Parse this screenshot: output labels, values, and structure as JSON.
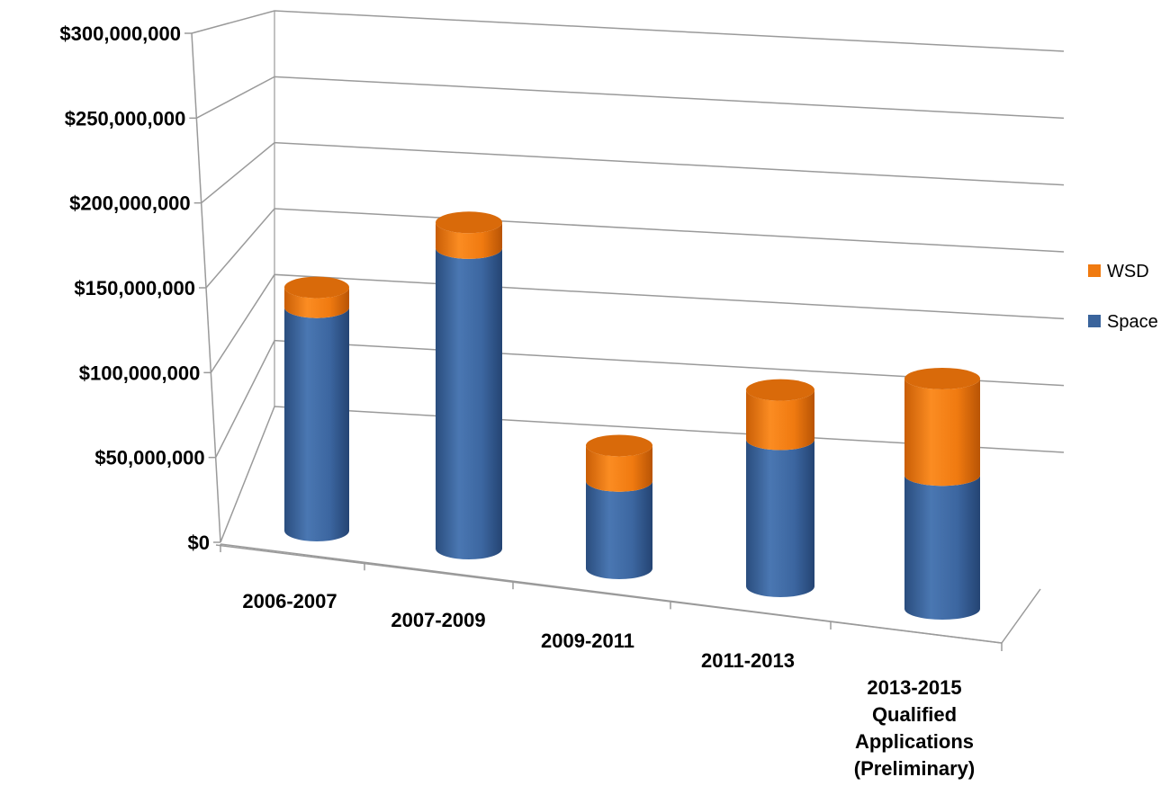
{
  "chart_data": {
    "type": "bar",
    "stacked": true,
    "three_d": true,
    "categories": [
      "2006-2007",
      "2007-2009",
      "2009-2011",
      "2011-2013",
      "2013-2015\nQualified\nApplications\n(Preliminary)"
    ],
    "series": [
      {
        "name": "Space",
        "color": "#3A649C",
        "values": [
          191000000,
          257000000,
          79000000,
          134000000,
          126000000
        ]
      },
      {
        "name": "WSD",
        "color": "#F07A10",
        "values": [
          17000000,
          22000000,
          32000000,
          45000000,
          91000000
        ]
      }
    ],
    "ylim": [
      0,
      300000000
    ],
    "yticks": [
      "$0",
      "$50,000,000",
      "$100,000,000",
      "$150,000,000",
      "$200,000,000",
      "$250,000,000",
      "$300,000,000"
    ],
    "grid": true,
    "legend_position": "right",
    "legend_order": [
      "WSD",
      "Space"
    ]
  }
}
